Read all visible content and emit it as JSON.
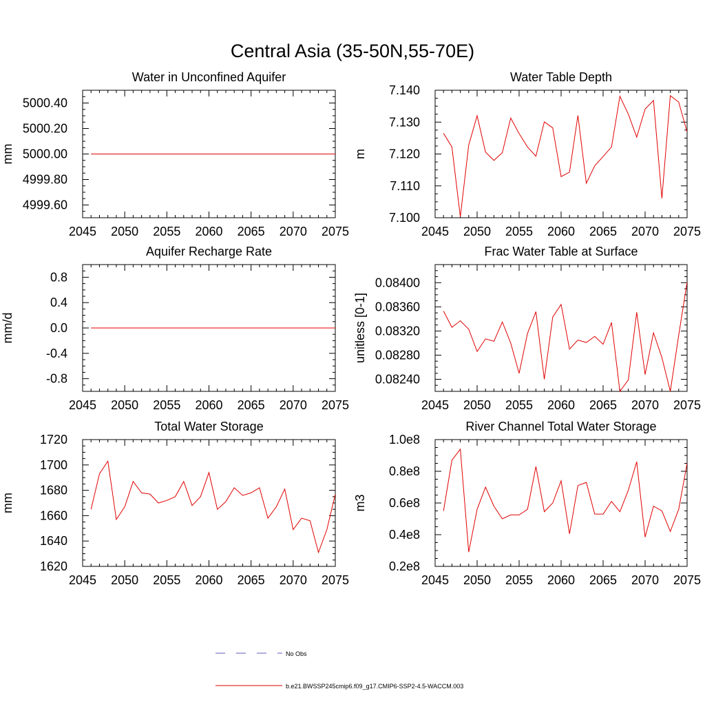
{
  "figure_title": "Central Asia (35-50N,55-70E)",
  "legend": {
    "obs_label": "No Obs",
    "model_label": "b.e21.BWSSP245cmip6.f09_g17.CMIP6-SSP2-4.5-WACCM.003",
    "obs_color": "#5a5ab4",
    "model_color": "#e00000"
  },
  "chart_data": [
    {
      "type": "line",
      "title": "Water in Unconfined Aquifer",
      "ylabel": "mm",
      "xlim": [
        2045,
        2075
      ],
      "ylim": [
        4999.5,
        5000.5
      ],
      "xticks": [
        "2045",
        "2050",
        "2055",
        "2060",
        "2065",
        "2070",
        "2075"
      ],
      "yticks": [
        "4999.60",
        "4999.80",
        "5000.00",
        "5000.20",
        "5000.40"
      ],
      "series": [
        {
          "color": "#e00000",
          "x": [
            2046,
            2047,
            2048,
            2049,
            2050,
            2051,
            2052,
            2053,
            2054,
            2055,
            2056,
            2057,
            2058,
            2059,
            2060,
            2061,
            2062,
            2063,
            2064,
            2065,
            2066,
            2067,
            2068,
            2069,
            2070,
            2071,
            2072,
            2073,
            2074,
            2075
          ],
          "values": [
            5000,
            5000,
            5000,
            5000,
            5000,
            5000,
            5000,
            5000,
            5000,
            5000,
            5000,
            5000,
            5000,
            5000,
            5000,
            5000,
            5000,
            5000,
            5000,
            5000,
            5000,
            5000,
            5000,
            5000,
            5000,
            5000,
            5000,
            5000,
            5000,
            5000
          ]
        }
      ]
    },
    {
      "type": "line",
      "title": "Water Table Depth",
      "ylabel": "m",
      "xlim": [
        2045,
        2075
      ],
      "ylim": [
        7.1,
        7.14
      ],
      "xticks": [
        "2045",
        "2050",
        "2055",
        "2060",
        "2065",
        "2070",
        "2075"
      ],
      "yticks": [
        "7.100",
        "7.110",
        "7.120",
        "7.130",
        "7.140"
      ],
      "series": [
        {
          "color": "#e00000",
          "x": [
            2046,
            2047,
            2048,
            2049,
            2050,
            2051,
            2052,
            2053,
            2054,
            2055,
            2056,
            2057,
            2058,
            2059,
            2060,
            2061,
            2062,
            2063,
            2064,
            2065,
            2066,
            2067,
            2068,
            2069,
            2070,
            2071,
            2072,
            2073,
            2074,
            2075
          ],
          "values": [
            7.1265,
            7.1222,
            7.1003,
            7.1228,
            7.132,
            7.1206,
            7.118,
            7.1204,
            7.1313,
            7.1264,
            7.1222,
            7.1193,
            7.1301,
            7.1282,
            7.1129,
            7.1143,
            7.1321,
            7.1108,
            7.1163,
            7.1192,
            7.1222,
            7.1381,
            7.1325,
            7.1253,
            7.1341,
            7.1368,
            7.1061,
            7.1383,
            7.1363,
            7.1269
          ]
        }
      ]
    },
    {
      "type": "line",
      "title": "Aquifer Recharge Rate",
      "ylabel": "mm/d",
      "xlim": [
        2045,
        2075
      ],
      "ylim": [
        -1.0,
        1.0
      ],
      "xticks": [
        "2045",
        "2050",
        "2055",
        "2060",
        "2065",
        "2070",
        "2075"
      ],
      "yticks": [
        "-0.8",
        "-0.4",
        "0.0",
        "0.4",
        "0.8"
      ],
      "series": [
        {
          "color": "#e00000",
          "x": [
            2046,
            2047,
            2048,
            2049,
            2050,
            2051,
            2052,
            2053,
            2054,
            2055,
            2056,
            2057,
            2058,
            2059,
            2060,
            2061,
            2062,
            2063,
            2064,
            2065,
            2066,
            2067,
            2068,
            2069,
            2070,
            2071,
            2072,
            2073,
            2074,
            2075
          ],
          "values": [
            0,
            0,
            0,
            0,
            0,
            0,
            0,
            0,
            0,
            0,
            0,
            0,
            0,
            0,
            0,
            0,
            0,
            0,
            0,
            0,
            0,
            0,
            0,
            0,
            0,
            0,
            0,
            0,
            0,
            0
          ]
        }
      ]
    },
    {
      "type": "line",
      "title": "Frac Water Table at Surface",
      "ylabel": "unitless [0-1]",
      "xlim": [
        2045,
        2075
      ],
      "ylim": [
        0.0822,
        0.0843
      ],
      "xticks": [
        "2045",
        "2050",
        "2055",
        "2060",
        "2065",
        "2070",
        "2075"
      ],
      "yticks": [
        "0.08240",
        "0.08280",
        "0.08320",
        "0.08360",
        "0.08400"
      ],
      "series": [
        {
          "color": "#e00000",
          "x": [
            2046,
            2047,
            2048,
            2049,
            2050,
            2051,
            2052,
            2053,
            2054,
            2055,
            2056,
            2057,
            2058,
            2059,
            2060,
            2061,
            2062,
            2063,
            2064,
            2065,
            2066,
            2067,
            2068,
            2069,
            2070,
            2071,
            2072,
            2073,
            2074,
            2075
          ],
          "values": [
            0.08353,
            0.08326,
            0.08337,
            0.08323,
            0.08286,
            0.08307,
            0.08303,
            0.08335,
            0.083,
            0.0825,
            0.08316,
            0.08352,
            0.0824,
            0.08343,
            0.08364,
            0.0829,
            0.08305,
            0.08301,
            0.08311,
            0.08298,
            0.08334,
            0.0822,
            0.08239,
            0.08351,
            0.08248,
            0.08317,
            0.08276,
            0.0822,
            0.08313,
            0.08401
          ]
        }
      ]
    },
    {
      "type": "line",
      "title": "Total Water Storage",
      "ylabel": "mm",
      "xlim": [
        2045,
        2075
      ],
      "ylim": [
        1620,
        1720
      ],
      "xticks": [
        "2045",
        "2050",
        "2055",
        "2060",
        "2065",
        "2070",
        "2075"
      ],
      "yticks": [
        "1620",
        "1640",
        "1660",
        "1680",
        "1700",
        "1720"
      ],
      "series": [
        {
          "color": "#e00000",
          "x": [
            2046,
            2047,
            2048,
            2049,
            2050,
            2051,
            2052,
            2053,
            2054,
            2055,
            2056,
            2057,
            2058,
            2059,
            2060,
            2061,
            2062,
            2063,
            2064,
            2065,
            2066,
            2067,
            2068,
            2069,
            2070,
            2071,
            2072,
            2073,
            2074,
            2075
          ],
          "values": [
            1665,
            1693,
            1703,
            1657,
            1667,
            1687,
            1678,
            1677,
            1670,
            1672,
            1675,
            1687,
            1668,
            1675,
            1694,
            1665,
            1671,
            1682,
            1676,
            1678,
            1682,
            1658,
            1667,
            1681,
            1649,
            1658,
            1656,
            1631,
            1649,
            1677
          ]
        }
      ]
    },
    {
      "type": "line",
      "title": "River Channel Total Water Storage",
      "ylabel": "m3",
      "xlim": [
        2045,
        2075
      ],
      "ylim": [
        20000000.0,
        100000000.0
      ],
      "xticks": [
        "2045",
        "2050",
        "2055",
        "2060",
        "2065",
        "2070",
        "2075"
      ],
      "yticks": [
        "0.2e8",
        "0.4e8",
        "0.6e8",
        "0.8e8",
        "1.0e8"
      ],
      "series": [
        {
          "color": "#e00000",
          "x": [
            2046,
            2047,
            2048,
            2049,
            2050,
            2051,
            2052,
            2053,
            2054,
            2055,
            2056,
            2057,
            2058,
            2059,
            2060,
            2061,
            2062,
            2063,
            2064,
            2065,
            2066,
            2067,
            2068,
            2069,
            2070,
            2071,
            2072,
            2073,
            2074,
            2075
          ],
          "values": [
            55000000.0,
            87000000.0,
            94000000.0,
            29000000.0,
            56000000.0,
            70000000.0,
            58000000.0,
            50000000.0,
            52500000.0,
            52500000.0,
            56000000.0,
            83000000.0,
            54500000.0,
            60000000.0,
            74000000.0,
            40500000.0,
            71000000.0,
            73000000.0,
            53000000.0,
            53000000.0,
            61000000.0,
            54500000.0,
            68000000.0,
            86000000.0,
            38500000.0,
            58000000.0,
            55000000.0,
            42000000.0,
            56000000.0,
            85000000.0
          ]
        }
      ]
    }
  ]
}
